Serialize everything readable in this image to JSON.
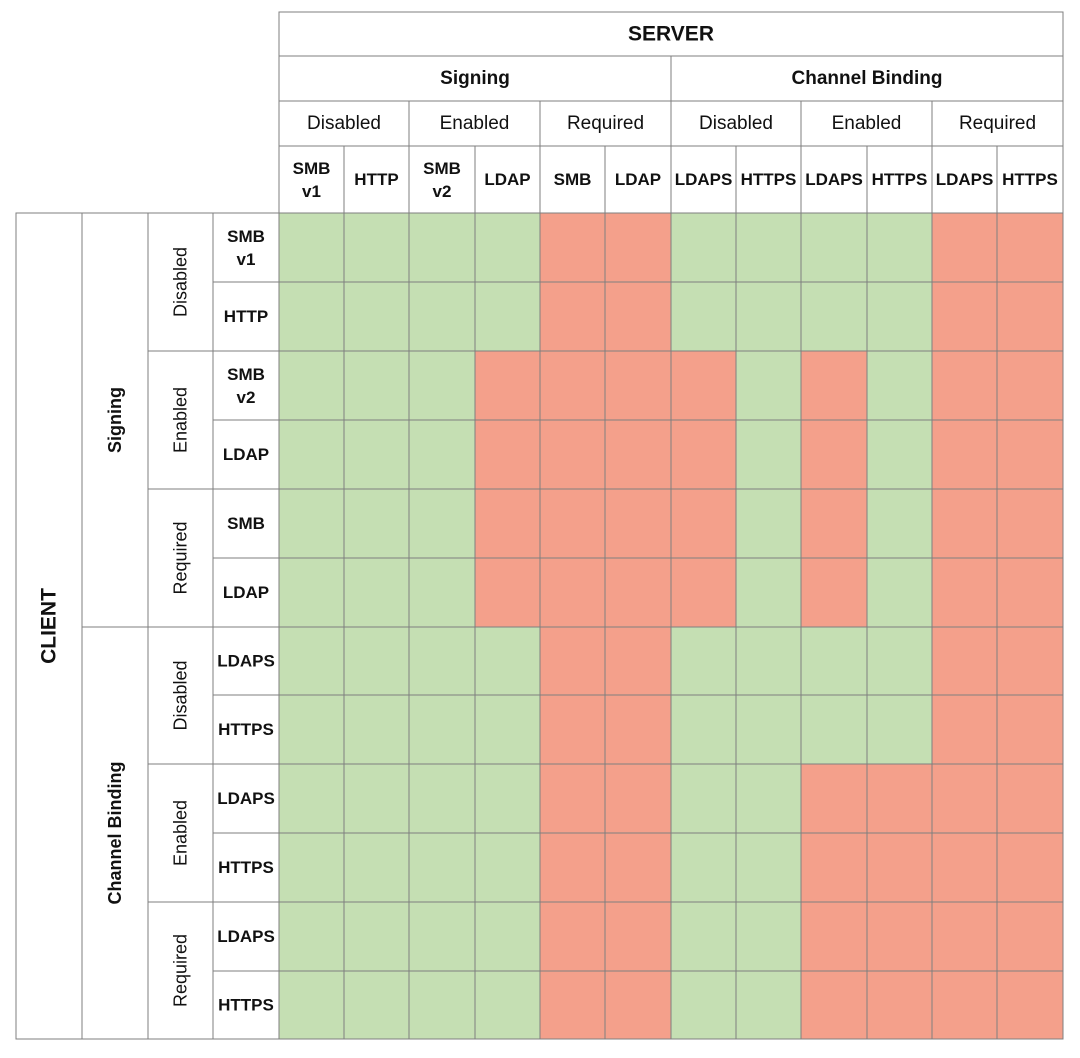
{
  "title_server": "SERVER",
  "title_client": "CLIENT",
  "colors": {
    "compatible": "#c5dfb3",
    "incompatible": "#f4a08b",
    "grid": "#7f7f7f",
    "background": "#ffffff"
  },
  "server_groups": [
    {
      "label": "Signing",
      "levels": [
        {
          "label": "Disabled",
          "protocols": [
            [
              "SMB",
              "v1"
            ],
            [
              "HTTP"
            ]
          ]
        },
        {
          "label": "Enabled",
          "protocols": [
            [
              "SMB",
              "v2"
            ],
            [
              "LDAP"
            ]
          ]
        },
        {
          "label": "Required",
          "protocols": [
            [
              "SMB"
            ],
            [
              "LDAP"
            ]
          ]
        }
      ]
    },
    {
      "label": "Channel Binding",
      "levels": [
        {
          "label": "Disabled",
          "protocols": [
            [
              "LDAPS"
            ],
            [
              "HTTPS"
            ]
          ]
        },
        {
          "label": "Enabled",
          "protocols": [
            [
              "LDAPS"
            ],
            [
              "HTTPS"
            ]
          ]
        },
        {
          "label": "Required",
          "protocols": [
            [
              "LDAPS"
            ],
            [
              "HTTPS"
            ]
          ]
        }
      ]
    }
  ],
  "client_groups": [
    {
      "label": "Signing",
      "levels": [
        {
          "label": "Disabled",
          "protocols": [
            [
              "SMB",
              "v1"
            ],
            [
              "HTTP"
            ]
          ]
        },
        {
          "label": "Enabled",
          "protocols": [
            [
              "SMB",
              "v2"
            ],
            [
              "LDAP"
            ]
          ]
        },
        {
          "label": "Required",
          "protocols": [
            [
              "SMB"
            ],
            [
              "LDAP"
            ]
          ]
        }
      ]
    },
    {
      "label": "Channel Binding",
      "levels": [
        {
          "label": "Disabled",
          "protocols": [
            [
              "LDAPS"
            ],
            [
              "HTTPS"
            ]
          ]
        },
        {
          "label": "Enabled",
          "protocols": [
            [
              "LDAPS"
            ],
            [
              "HTTPS"
            ]
          ]
        },
        {
          "label": "Required",
          "protocols": [
            [
              "LDAPS"
            ],
            [
              "HTTPS"
            ]
          ]
        }
      ]
    }
  ],
  "matrix": [
    [
      1,
      1,
      1,
      1,
      0,
      0,
      1,
      1,
      1,
      1,
      0,
      0
    ],
    [
      1,
      1,
      1,
      1,
      0,
      0,
      1,
      1,
      1,
      1,
      0,
      0
    ],
    [
      1,
      1,
      1,
      0,
      0,
      0,
      0,
      1,
      0,
      1,
      0,
      0
    ],
    [
      1,
      1,
      1,
      0,
      0,
      0,
      0,
      1,
      0,
      1,
      0,
      0
    ],
    [
      1,
      1,
      1,
      0,
      0,
      0,
      0,
      1,
      0,
      1,
      0,
      0
    ],
    [
      1,
      1,
      1,
      0,
      0,
      0,
      0,
      1,
      0,
      1,
      0,
      0
    ],
    [
      1,
      1,
      1,
      1,
      0,
      0,
      1,
      1,
      1,
      1,
      0,
      0
    ],
    [
      1,
      1,
      1,
      1,
      0,
      0,
      1,
      1,
      1,
      1,
      0,
      0
    ],
    [
      1,
      1,
      1,
      1,
      0,
      0,
      1,
      1,
      0,
      0,
      0,
      0
    ],
    [
      1,
      1,
      1,
      1,
      0,
      0,
      1,
      1,
      0,
      0,
      0,
      0
    ],
    [
      1,
      1,
      1,
      1,
      0,
      0,
      1,
      1,
      0,
      0,
      0,
      0
    ],
    [
      1,
      1,
      1,
      1,
      0,
      0,
      1,
      1,
      0,
      0,
      0,
      0
    ]
  ]
}
